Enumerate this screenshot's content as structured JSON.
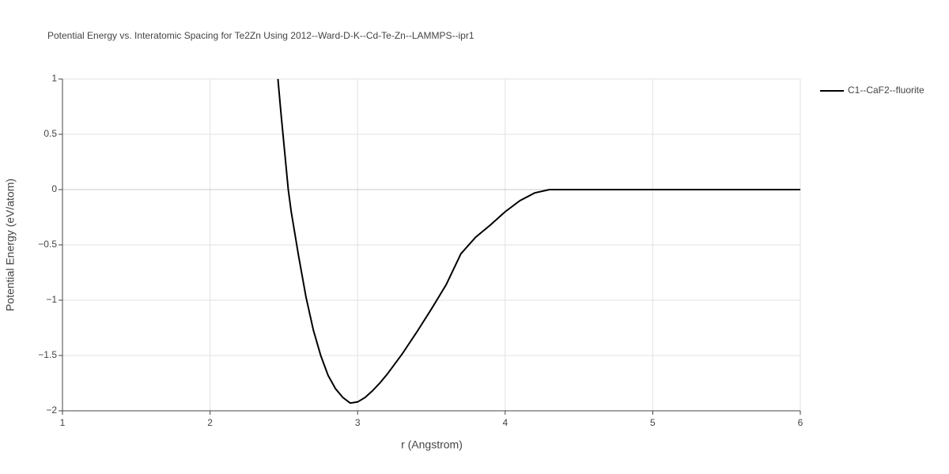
{
  "chart_data": {
    "type": "line",
    "title": "Potential Energy vs. Interatomic Spacing for Te2Zn Using 2012--Ward-D-K--Cd-Te-Zn--LAMMPS--ipr1",
    "x_label": "r (Angstrom)",
    "y_label": "Potential Energy (eV/atom)",
    "x": [
      2.46,
      2.48,
      2.5,
      2.53,
      2.55,
      2.6,
      2.65,
      2.7,
      2.75,
      2.8,
      2.85,
      2.9,
      2.95,
      3.0,
      3.05,
      3.1,
      3.15,
      3.2,
      3.3,
      3.4,
      3.5,
      3.6,
      3.7,
      3.8,
      3.9,
      4.0,
      4.1,
      4.2,
      4.3,
      4.5,
      5.0,
      5.5,
      6.0
    ],
    "series": [
      {
        "name": "C1--CaF2--fluorite",
        "color": "#000000",
        "values": [
          1.0,
          0.7,
          0.42,
          0.0,
          -0.2,
          -0.6,
          -0.97,
          -1.27,
          -1.5,
          -1.68,
          -1.8,
          -1.88,
          -1.93,
          -1.92,
          -1.88,
          -1.82,
          -1.75,
          -1.67,
          -1.49,
          -1.29,
          -1.08,
          -0.86,
          -0.58,
          -0.43,
          -0.32,
          -0.2,
          -0.1,
          -0.03,
          0,
          0,
          0,
          0,
          0
        ]
      }
    ],
    "xlim": [
      1,
      6
    ],
    "xticks": [
      1,
      2,
      3,
      4,
      5,
      6
    ],
    "ylim": [
      -2,
      1
    ],
    "yticks": [
      {
        "value": -2,
        "label": "−2"
      },
      {
        "value": -1.5,
        "label": "−1.5"
      },
      {
        "value": -1,
        "label": "−1"
      },
      {
        "value": -0.5,
        "label": "−0.5"
      },
      0,
      0.5,
      1
    ],
    "grid": true,
    "legend": "right"
  }
}
